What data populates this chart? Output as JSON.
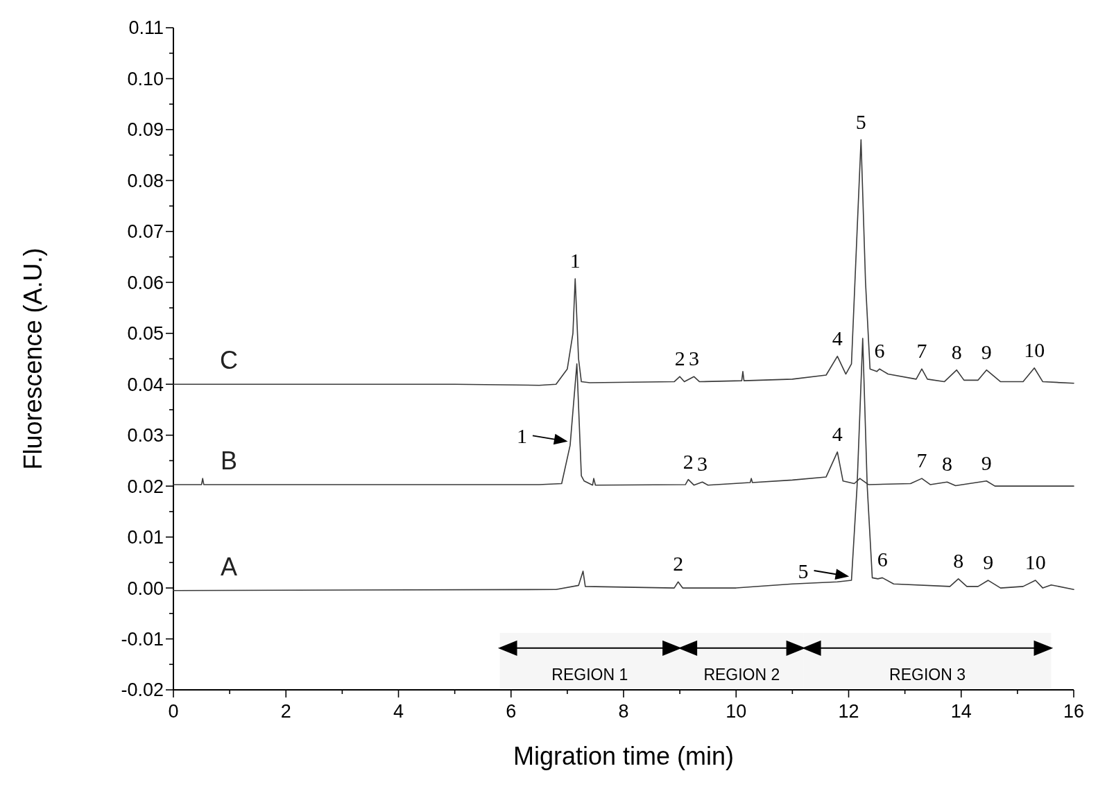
{
  "chart_data": {
    "type": "line",
    "xlabel": "Migration time (min)",
    "ylabel": "Fluorescence (A.U.)",
    "xlim": [
      0,
      16
    ],
    "ylim": [
      -0.02,
      0.11
    ],
    "xticks": [
      0,
      {
        "value": 1,
        "label": null
      },
      2,
      {
        "value": 3,
        "label": null
      },
      4,
      {
        "value": 5,
        "label": null
      },
      6,
      {
        "value": 7,
        "label": null
      },
      8,
      {
        "value": 9,
        "label": null
      },
      10,
      {
        "value": 11,
        "label": null
      },
      12,
      {
        "value": 13,
        "label": null
      },
      14,
      {
        "value": 15,
        "label": null
      },
      16
    ],
    "yticks": [
      {
        "value": -0.02,
        "label": "-0.02"
      },
      {
        "value": -0.015,
        "label": null
      },
      {
        "value": -0.01,
        "label": "-0.01"
      },
      {
        "value": -0.005,
        "label": null
      },
      {
        "value": 0,
        "label": "0.00"
      },
      {
        "value": 0.005,
        "label": null
      },
      {
        "value": 0.01,
        "label": "0.01"
      },
      {
        "value": 0.015,
        "label": null
      },
      {
        "value": 0.02,
        "label": "0.02"
      },
      {
        "value": 0.025,
        "label": null
      },
      {
        "value": 0.03,
        "label": "0.03"
      },
      {
        "value": 0.035,
        "label": null
      },
      {
        "value": 0.04,
        "label": "0.04"
      },
      {
        "value": 0.045,
        "label": null
      },
      {
        "value": 0.05,
        "label": "0.05"
      },
      {
        "value": 0.055,
        "label": null
      },
      {
        "value": 0.06,
        "label": "0.06"
      },
      {
        "value": 0.065,
        "label": null
      },
      {
        "value": 0.07,
        "label": "0.07"
      },
      {
        "value": 0.075,
        "label": null
      },
      {
        "value": 0.08,
        "label": "0.08"
      },
      {
        "value": 0.085,
        "label": null
      },
      {
        "value": 0.09,
        "label": "0.09"
      },
      {
        "value": 0.095,
        "label": null
      },
      {
        "value": 0.1,
        "label": "0.10"
      },
      {
        "value": 0.105,
        "label": null
      },
      {
        "value": 0.11,
        "label": "0.11"
      }
    ],
    "series": [
      {
        "name": "C",
        "color": "#3a3a3a",
        "x": [
          0,
          5,
          6.5,
          6.8,
          7.0,
          7.1,
          7.14,
          7.2,
          7.25,
          7.4,
          8.9,
          9.0,
          9.08,
          9.25,
          9.35,
          10.1,
          10.12,
          10.14,
          11.0,
          11.6,
          11.8,
          11.95,
          12.05,
          12.15,
          12.22,
          12.3,
          12.38,
          12.5,
          12.55,
          12.7,
          13.2,
          13.3,
          13.4,
          13.7,
          13.92,
          14.05,
          14.3,
          14.45,
          14.7,
          15.1,
          15.3,
          15.45,
          16
        ],
        "values": [
          0.04,
          0.04,
          0.0398,
          0.04,
          0.043,
          0.05,
          0.0607,
          0.045,
          0.0405,
          0.0403,
          0.0405,
          0.0415,
          0.0405,
          0.0415,
          0.0405,
          0.0407,
          0.0425,
          0.0407,
          0.041,
          0.0418,
          0.0455,
          0.042,
          0.044,
          0.07,
          0.088,
          0.06,
          0.043,
          0.0425,
          0.043,
          0.042,
          0.041,
          0.043,
          0.041,
          0.0405,
          0.0428,
          0.0408,
          0.0408,
          0.0428,
          0.0405,
          0.0405,
          0.0432,
          0.0405,
          0.0402
        ]
      },
      {
        "name": "B",
        "color": "#3a3a3a",
        "x": [
          0,
          0.5,
          0.52,
          0.54,
          6.5,
          6.9,
          7.05,
          7.17,
          7.25,
          7.3,
          7.45,
          7.47,
          7.5,
          9.1,
          9.15,
          9.25,
          9.4,
          9.5,
          10.25,
          10.27,
          10.29,
          11.0,
          11.6,
          11.8,
          11.9,
          12.1,
          12.2,
          12.35,
          13.1,
          13.3,
          13.45,
          13.75,
          13.9,
          14.45,
          14.6,
          16
        ],
        "values": [
          0.0203,
          0.0203,
          0.0215,
          0.0203,
          0.0203,
          0.0205,
          0.028,
          0.044,
          0.022,
          0.021,
          0.0202,
          0.0215,
          0.0202,
          0.0203,
          0.0213,
          0.0202,
          0.0208,
          0.0202,
          0.0207,
          0.0215,
          0.0207,
          0.0212,
          0.0218,
          0.0267,
          0.021,
          0.0205,
          0.0215,
          0.0203,
          0.0205,
          0.0215,
          0.0203,
          0.0208,
          0.0201,
          0.021,
          0.02,
          0.02
        ]
      },
      {
        "name": "A",
        "color": "#3a3a3a",
        "x": [
          0,
          6.8,
          7.2,
          7.28,
          7.32,
          8.9,
          8.97,
          9.05,
          10.0,
          11.0,
          11.8,
          12.05,
          12.15,
          12.25,
          12.33,
          12.42,
          12.52,
          12.6,
          12.8,
          13.8,
          13.95,
          14.1,
          14.3,
          14.48,
          14.7,
          15.1,
          15.32,
          15.45,
          15.6,
          16
        ],
        "values": [
          -0.0005,
          -0.0003,
          0.0005,
          0.0033,
          0.0003,
          0.0,
          0.0012,
          0.0,
          0.0,
          0.0008,
          0.0012,
          0.0015,
          0.02,
          0.049,
          0.02,
          0.002,
          0.0018,
          0.002,
          0.0008,
          0.0003,
          0.0018,
          0.0003,
          0.0003,
          0.0015,
          0.0,
          0.0003,
          0.0015,
          0.0,
          0.0006,
          -0.0003
        ]
      }
    ],
    "annotations": [
      {
        "text": "1",
        "x": 7.14,
        "y": 0.0607
      },
      {
        "text": "2",
        "x": 9.0,
        "y": 0.0415
      },
      {
        "text": "3",
        "x": 9.25,
        "y": 0.0415
      },
      {
        "text": "4",
        "x": 11.8,
        "y": 0.0455
      },
      {
        "text": "5",
        "x": 12.22,
        "y": 0.088
      },
      {
        "text": "6",
        "x": 12.55,
        "y": 0.043
      },
      {
        "text": "7",
        "x": 13.3,
        "y": 0.043
      },
      {
        "text": "8",
        "x": 13.92,
        "y": 0.0428
      },
      {
        "text": "9",
        "x": 14.45,
        "y": 0.0428
      },
      {
        "text": "10",
        "x": 15.3,
        "y": 0.0432
      },
      {
        "text": "1",
        "x": 7.05,
        "y": 0.028
      },
      {
        "text": "2",
        "x": 9.15,
        "y": 0.0213
      },
      {
        "text": "3",
        "x": 9.4,
        "y": 0.0208
      },
      {
        "text": "4",
        "x": 11.8,
        "y": 0.0267
      },
      {
        "text": "7",
        "x": 13.3,
        "y": 0.0215
      },
      {
        "text": "8",
        "x": 13.75,
        "y": 0.0208
      },
      {
        "text": "9",
        "x": 14.45,
        "y": 0.021
      },
      {
        "text": "2",
        "x": 8.97,
        "y": 0.0012
      },
      {
        "text": "5",
        "x": 12.05,
        "y": 0.0015
      },
      {
        "text": "6",
        "x": 12.6,
        "y": 0.002
      },
      {
        "text": "8",
        "x": 13.95,
        "y": 0.0018
      },
      {
        "text": "9",
        "x": 14.48,
        "y": 0.0015
      },
      {
        "text": "10",
        "x": 15.32,
        "y": 0.0015
      }
    ],
    "bands": [
      {
        "axis": "x",
        "from": 5.8,
        "to": 9.0,
        "label": "REGION 1"
      },
      {
        "axis": "x",
        "from": 9.0,
        "to": 11.2,
        "label": "REGION 2"
      },
      {
        "axis": "x",
        "from": 11.2,
        "to": 15.6,
        "label": "REGION 3"
      }
    ]
  }
}
